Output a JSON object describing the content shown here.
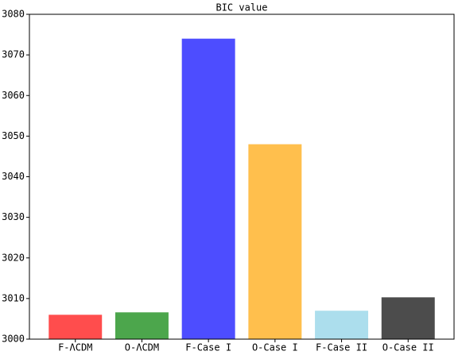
{
  "chart_data": {
    "type": "bar",
    "title": "BIC value",
    "categories": [
      "F-ΛCDM",
      "O-ΛCDM",
      "F-Case I",
      "O-Case I",
      "F-Case II",
      "O-Case II"
    ],
    "values": [
      3006.0,
      3006.6,
      3074.0,
      3048.0,
      3007.0,
      3010.3
    ],
    "colors": [
      "#ff4d4d",
      "#4ca64c",
      "#4d4dff",
      "#ffbf4d",
      "#acdeed",
      "#4c4c4c"
    ],
    "ylim": [
      3000,
      3080
    ],
    "yticks": [
      3000,
      3010,
      3020,
      3030,
      3040,
      3050,
      3060,
      3070,
      3080
    ]
  }
}
